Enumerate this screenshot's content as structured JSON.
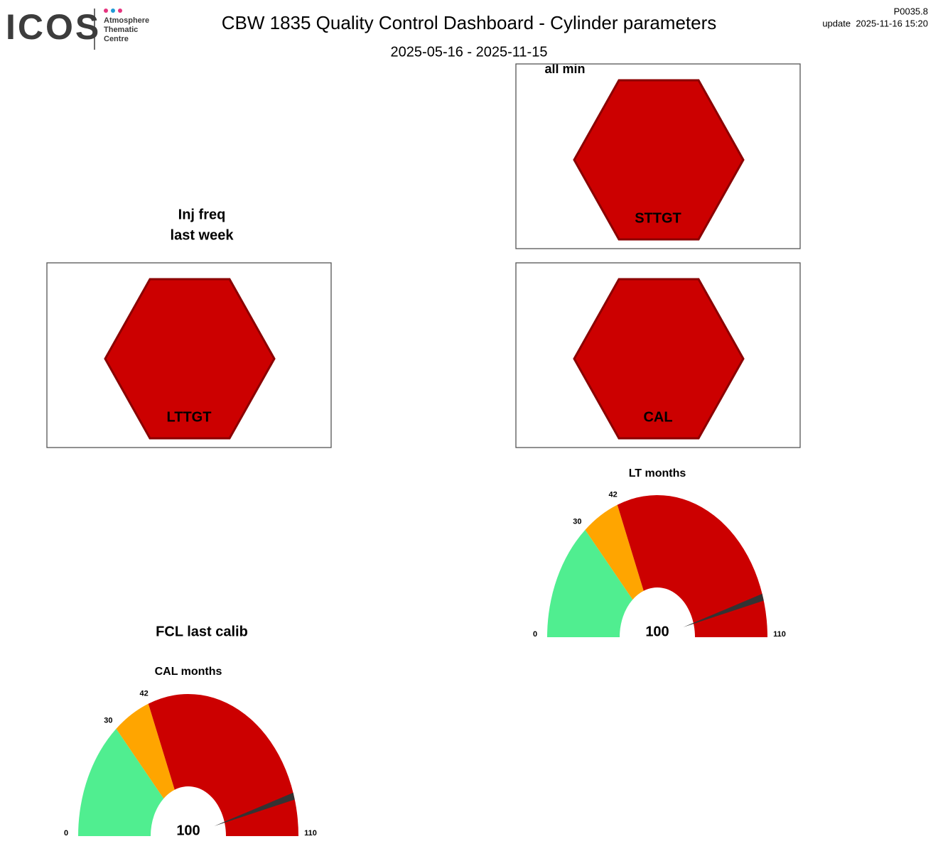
{
  "header": {
    "logo": "ICOS",
    "logo_subtitle": [
      "Atmosphere",
      "Thematic",
      "Centre"
    ],
    "title": "CBW 1835 Quality Control Dashboard - Cylinder parameters",
    "date_range": "2025-05-16 - 2025-11-15",
    "version": "P0035.8",
    "update": "update  2025-11-16 15:20"
  },
  "section_labels": [
    "all min",
    "Inj freq",
    "last week",
    "FCL last calib"
  ],
  "status_tiles": [
    {
      "label": "STTGT",
      "color": "#cc0000"
    },
    {
      "label": "LTTGT",
      "color": "#cc0000"
    },
    {
      "label": "CAL",
      "color": "#cc0000"
    }
  ],
  "chart_data": [
    {
      "type": "gauge",
      "title": "LT months",
      "value": 100,
      "ylim": [
        0,
        110
      ],
      "yticks": [
        0,
        30,
        42,
        110
      ],
      "bands": [
        {
          "from": 0,
          "to": 30,
          "color": "#50ee90"
        },
        {
          "from": 30,
          "to": 42,
          "color": "#ffa500"
        },
        {
          "from": 42,
          "to": 110,
          "color": "#cc0000"
        }
      ],
      "needle_color": "#333333"
    },
    {
      "type": "gauge",
      "title": "CAL months",
      "value": 100,
      "ylim": [
        0,
        110
      ],
      "yticks": [
        0,
        30,
        42,
        110
      ],
      "bands": [
        {
          "from": 0,
          "to": 30,
          "color": "#50ee90"
        },
        {
          "from": 30,
          "to": 42,
          "color": "#ffa500"
        },
        {
          "from": 42,
          "to": 110,
          "color": "#cc0000"
        }
      ],
      "needle_color": "#333333"
    }
  ]
}
